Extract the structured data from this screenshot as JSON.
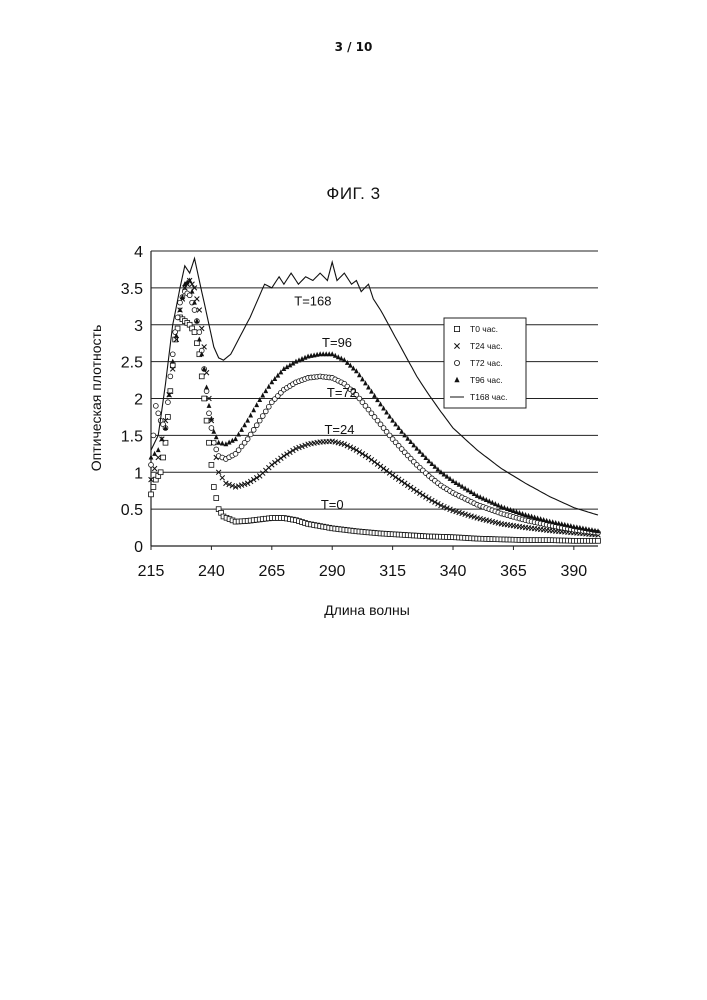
{
  "page": {
    "number": "3 / 10"
  },
  "figure": {
    "title": "ФИГ. 3"
  },
  "chart_data": {
    "type": "scatter",
    "title": "ФИГ. 3",
    "xlabel": "Длина волны",
    "ylabel": "Оптическая плотность",
    "xlim": [
      215,
      400
    ],
    "ylim": [
      0,
      4
    ],
    "x_ticks": [
      "215",
      "240",
      "265",
      "290",
      "315",
      "340",
      "365",
      "390"
    ],
    "y_ticks": [
      "0",
      "0.5",
      "1",
      "1.5",
      "2",
      "2.5",
      "3",
      "3.5",
      "4"
    ],
    "grid": "horizontal",
    "legend_position": "right",
    "series": [
      {
        "name": "T0 час.",
        "marker": "square",
        "annotation": "T=0",
        "points": [
          [
            215,
            0.7
          ],
          [
            217,
            0.9
          ],
          [
            219,
            1.0
          ],
          [
            221,
            1.4
          ],
          [
            223,
            2.1
          ],
          [
            225,
            2.8
          ],
          [
            227,
            3.1
          ],
          [
            229,
            3.05
          ],
          [
            231,
            3.0
          ],
          [
            233,
            2.9
          ],
          [
            235,
            2.6
          ],
          [
            237,
            2.0
          ],
          [
            239,
            1.4
          ],
          [
            241,
            0.8
          ],
          [
            243,
            0.5
          ],
          [
            245,
            0.4
          ],
          [
            250,
            0.33
          ],
          [
            255,
            0.34
          ],
          [
            260,
            0.36
          ],
          [
            265,
            0.38
          ],
          [
            270,
            0.38
          ],
          [
            275,
            0.35
          ],
          [
            280,
            0.3
          ],
          [
            290,
            0.24
          ],
          [
            300,
            0.2
          ],
          [
            310,
            0.17
          ],
          [
            320,
            0.15
          ],
          [
            330,
            0.13
          ],
          [
            340,
            0.12
          ],
          [
            350,
            0.1
          ],
          [
            360,
            0.09
          ],
          [
            370,
            0.08
          ],
          [
            380,
            0.08
          ],
          [
            390,
            0.07
          ],
          [
            400,
            0.07
          ]
        ]
      },
      {
        "name": "T24 час.",
        "marker": "x",
        "annotation": "T=24",
        "points": [
          [
            215,
            0.9
          ],
          [
            218,
            1.2
          ],
          [
            221,
            1.7
          ],
          [
            224,
            2.4
          ],
          [
            227,
            3.2
          ],
          [
            229,
            3.5
          ],
          [
            231,
            3.6
          ],
          [
            233,
            3.5
          ],
          [
            235,
            3.2
          ],
          [
            237,
            2.7
          ],
          [
            239,
            2.0
          ],
          [
            241,
            1.4
          ],
          [
            243,
            1.0
          ],
          [
            246,
            0.85
          ],
          [
            250,
            0.8
          ],
          [
            255,
            0.85
          ],
          [
            260,
            0.95
          ],
          [
            265,
            1.1
          ],
          [
            270,
            1.22
          ],
          [
            275,
            1.32
          ],
          [
            280,
            1.38
          ],
          [
            285,
            1.41
          ],
          [
            290,
            1.42
          ],
          [
            295,
            1.38
          ],
          [
            300,
            1.3
          ],
          [
            305,
            1.2
          ],
          [
            310,
            1.08
          ],
          [
            315,
            0.96
          ],
          [
            320,
            0.85
          ],
          [
            325,
            0.74
          ],
          [
            330,
            0.64
          ],
          [
            335,
            0.55
          ],
          [
            340,
            0.48
          ],
          [
            350,
            0.38
          ],
          [
            360,
            0.3
          ],
          [
            370,
            0.25
          ],
          [
            380,
            0.21
          ],
          [
            390,
            0.18
          ],
          [
            400,
            0.15
          ]
        ]
      },
      {
        "name": "T72 час.",
        "marker": "circle",
        "annotation": "T=72",
        "points": [
          [
            215,
            1.1
          ],
          [
            217,
            1.9
          ],
          [
            219,
            1.7
          ],
          [
            221,
            1.6
          ],
          [
            223,
            2.3
          ],
          [
            225,
            2.9
          ],
          [
            227,
            3.3
          ],
          [
            229,
            3.45
          ],
          [
            231,
            3.4
          ],
          [
            233,
            3.2
          ],
          [
            235,
            2.9
          ],
          [
            237,
            2.4
          ],
          [
            239,
            1.8
          ],
          [
            241,
            1.4
          ],
          [
            243,
            1.22
          ],
          [
            246,
            1.18
          ],
          [
            250,
            1.25
          ],
          [
            255,
            1.45
          ],
          [
            260,
            1.7
          ],
          [
            265,
            1.95
          ],
          [
            270,
            2.12
          ],
          [
            275,
            2.22
          ],
          [
            280,
            2.28
          ],
          [
            285,
            2.3
          ],
          [
            290,
            2.28
          ],
          [
            295,
            2.2
          ],
          [
            300,
            2.05
          ],
          [
            305,
            1.85
          ],
          [
            310,
            1.65
          ],
          [
            315,
            1.45
          ],
          [
            320,
            1.27
          ],
          [
            325,
            1.1
          ],
          [
            330,
            0.95
          ],
          [
            335,
            0.82
          ],
          [
            340,
            0.72
          ],
          [
            350,
            0.56
          ],
          [
            360,
            0.44
          ],
          [
            370,
            0.35
          ],
          [
            380,
            0.28
          ],
          [
            390,
            0.22
          ],
          [
            400,
            0.18
          ]
        ]
      },
      {
        "name": "T96 час.",
        "marker": "triangle",
        "annotation": "T=96",
        "points": [
          [
            215,
            1.2
          ],
          [
            218,
            1.3
          ],
          [
            221,
            1.6
          ],
          [
            224,
            2.5
          ],
          [
            227,
            3.2
          ],
          [
            229,
            3.55
          ],
          [
            231,
            3.6
          ],
          [
            233,
            3.3
          ],
          [
            235,
            2.8
          ],
          [
            237,
            2.4
          ],
          [
            239,
            1.9
          ],
          [
            241,
            1.55
          ],
          [
            243,
            1.4
          ],
          [
            246,
            1.38
          ],
          [
            250,
            1.45
          ],
          [
            255,
            1.7
          ],
          [
            260,
            1.98
          ],
          [
            265,
            2.22
          ],
          [
            270,
            2.4
          ],
          [
            275,
            2.5
          ],
          [
            280,
            2.57
          ],
          [
            285,
            2.6
          ],
          [
            290,
            2.6
          ],
          [
            295,
            2.52
          ],
          [
            300,
            2.37
          ],
          [
            305,
            2.15
          ],
          [
            310,
            1.92
          ],
          [
            315,
            1.7
          ],
          [
            320,
            1.5
          ],
          [
            325,
            1.32
          ],
          [
            330,
            1.15
          ],
          [
            335,
            1.0
          ],
          [
            340,
            0.88
          ],
          [
            350,
            0.68
          ],
          [
            360,
            0.53
          ],
          [
            370,
            0.42
          ],
          [
            380,
            0.33
          ],
          [
            390,
            0.26
          ],
          [
            400,
            0.2
          ]
        ]
      },
      {
        "name": "T168 час.",
        "marker": "line",
        "annotation": "T=168",
        "points": [
          [
            215,
            1.3
          ],
          [
            218,
            1.5
          ],
          [
            221,
            2.2
          ],
          [
            224,
            3.0
          ],
          [
            227,
            3.5
          ],
          [
            229,
            3.8
          ],
          [
            231,
            3.7
          ],
          [
            233,
            3.9
          ],
          [
            235,
            3.6
          ],
          [
            237,
            3.3
          ],
          [
            239,
            3.0
          ],
          [
            241,
            2.7
          ],
          [
            243,
            2.55
          ],
          [
            245,
            2.52
          ],
          [
            248,
            2.6
          ],
          [
            252,
            2.85
          ],
          [
            256,
            3.1
          ],
          [
            260,
            3.4
          ],
          [
            262,
            3.55
          ],
          [
            265,
            3.5
          ],
          [
            268,
            3.65
          ],
          [
            270,
            3.55
          ],
          [
            273,
            3.7
          ],
          [
            276,
            3.55
          ],
          [
            279,
            3.65
          ],
          [
            282,
            3.6
          ],
          [
            285,
            3.7
          ],
          [
            288,
            3.6
          ],
          [
            290,
            3.85
          ],
          [
            292,
            3.6
          ],
          [
            295,
            3.7
          ],
          [
            298,
            3.55
          ],
          [
            300,
            3.6
          ],
          [
            302,
            3.45
          ],
          [
            305,
            3.55
          ],
          [
            307,
            3.35
          ],
          [
            310,
            3.2
          ],
          [
            315,
            2.9
          ],
          [
            320,
            2.6
          ],
          [
            325,
            2.3
          ],
          [
            330,
            2.05
          ],
          [
            335,
            1.82
          ],
          [
            340,
            1.6
          ],
          [
            350,
            1.3
          ],
          [
            360,
            1.05
          ],
          [
            370,
            0.85
          ],
          [
            380,
            0.67
          ],
          [
            390,
            0.52
          ],
          [
            400,
            0.42
          ]
        ]
      }
    ]
  }
}
